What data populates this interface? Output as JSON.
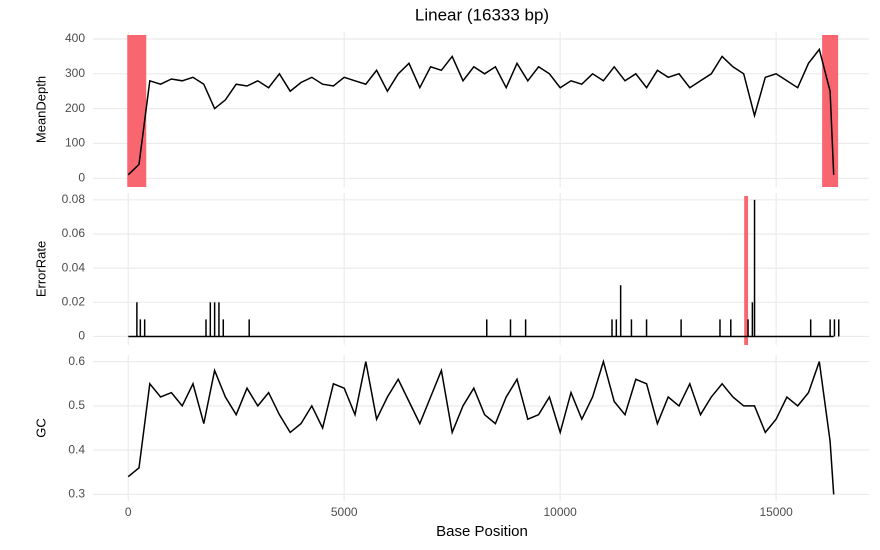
{
  "chart_data": [
    {
      "type": "line",
      "title": "Linear (16333 bp)",
      "ylabel": "MeanDepth",
      "color": "#000000",
      "xlim": [
        -816,
        17150
      ],
      "ylim": [
        -25,
        420
      ],
      "yticks": [
        0,
        100,
        200,
        300,
        400
      ],
      "grid": true,
      "highlight_color": "#f8666f",
      "highlights": [
        {
          "start": -23,
          "end": 417
        },
        {
          "start": 16065,
          "end": 16435
        }
      ],
      "x": [
        0,
        250,
        500,
        750,
        1000,
        1250,
        1500,
        1750,
        2000,
        2250,
        2500,
        2750,
        3000,
        3250,
        3500,
        3750,
        4000,
        4250,
        4500,
        4750,
        5000,
        5250,
        5500,
        5750,
        6000,
        6250,
        6500,
        6750,
        7000,
        7250,
        7500,
        7750,
        8000,
        8250,
        8500,
        8750,
        9000,
        9250,
        9500,
        9750,
        10000,
        10250,
        10500,
        10750,
        11000,
        11250,
        11500,
        11750,
        12000,
        12250,
        12500,
        12750,
        13000,
        13250,
        13500,
        13750,
        14000,
        14250,
        14500,
        14750,
        15000,
        15250,
        15500,
        15750,
        16000,
        16250,
        16333
      ],
      "values": [
        10,
        40,
        280,
        270,
        285,
        280,
        290,
        270,
        200,
        225,
        270,
        265,
        280,
        260,
        300,
        250,
        275,
        290,
        270,
        265,
        290,
        280,
        270,
        310,
        250,
        300,
        330,
        260,
        320,
        310,
        350,
        280,
        320,
        300,
        320,
        260,
        330,
        280,
        320,
        300,
        260,
        280,
        270,
        300,
        280,
        320,
        280,
        300,
        260,
        310,
        290,
        300,
        260,
        280,
        300,
        350,
        320,
        300,
        180,
        290,
        300,
        280,
        260,
        330,
        370,
        250,
        10
      ]
    },
    {
      "type": "spike",
      "ylabel": "ErrorRate",
      "color": "#000000",
      "xlim": [
        -816,
        17150
      ],
      "ylim": [
        -0.005,
        0.084
      ],
      "yticks": [
        0,
        0.02,
        0.04,
        0.06,
        0.08
      ],
      "grid": true,
      "highlight_color": "#f8666f",
      "highlights": [
        {
          "start": 14260,
          "end": 14350
        }
      ],
      "baseline": [
        1,
        16333
      ],
      "x": [
        200,
        280,
        380,
        1800,
        1900,
        2000,
        2100,
        2200,
        2800,
        8300,
        8850,
        9200,
        11200,
        11300,
        11400,
        11650,
        12000,
        12800,
        13700,
        13950,
        14350,
        14450,
        14500,
        15800,
        16250,
        16350,
        16450
      ],
      "values": [
        0.02,
        0.01,
        0.01,
        0.01,
        0.02,
        0.02,
        0.02,
        0.01,
        0.01,
        0.01,
        0.01,
        0.01,
        0.01,
        0.01,
        0.03,
        0.01,
        0.01,
        0.01,
        0.01,
        0.01,
        0.01,
        0.02,
        0.08,
        0.01,
        0.01,
        0.01,
        0.01
      ]
    },
    {
      "type": "line",
      "ylabel": "GC",
      "xlabel": "Base Position",
      "color": "#000000",
      "xlim": [
        -816,
        17150
      ],
      "xticks": [
        0,
        5000,
        10000,
        15000
      ],
      "ylim": [
        0.285,
        0.615
      ],
      "yticks": [
        0.3,
        0.4,
        0.5,
        0.6
      ],
      "grid": true,
      "x": [
        0,
        250,
        500,
        750,
        1000,
        1250,
        1500,
        1750,
        2000,
        2250,
        2500,
        2750,
        3000,
        3250,
        3500,
        3750,
        4000,
        4250,
        4500,
        4750,
        5000,
        5250,
        5500,
        5750,
        6000,
        6250,
        6500,
        6750,
        7000,
        7250,
        7500,
        7750,
        8000,
        8250,
        8500,
        8750,
        9000,
        9250,
        9500,
        9750,
        10000,
        10250,
        10500,
        10750,
        11000,
        11250,
        11500,
        11750,
        12000,
        12250,
        12500,
        12750,
        13000,
        13250,
        13500,
        13750,
        14000,
        14250,
        14500,
        14750,
        15000,
        15250,
        15500,
        15750,
        16000,
        16250,
        16333
      ],
      "values": [
        0.34,
        0.36,
        0.55,
        0.52,
        0.53,
        0.5,
        0.55,
        0.46,
        0.58,
        0.52,
        0.48,
        0.54,
        0.5,
        0.53,
        0.48,
        0.44,
        0.46,
        0.5,
        0.45,
        0.55,
        0.54,
        0.48,
        0.6,
        0.47,
        0.52,
        0.56,
        0.51,
        0.46,
        0.52,
        0.58,
        0.44,
        0.5,
        0.54,
        0.48,
        0.46,
        0.52,
        0.56,
        0.47,
        0.48,
        0.52,
        0.44,
        0.53,
        0.47,
        0.52,
        0.6,
        0.51,
        0.48,
        0.56,
        0.55,
        0.46,
        0.52,
        0.5,
        0.55,
        0.48,
        0.52,
        0.55,
        0.52,
        0.5,
        0.5,
        0.44,
        0.47,
        0.52,
        0.5,
        0.53,
        0.6,
        0.42,
        0.3
      ]
    }
  ]
}
